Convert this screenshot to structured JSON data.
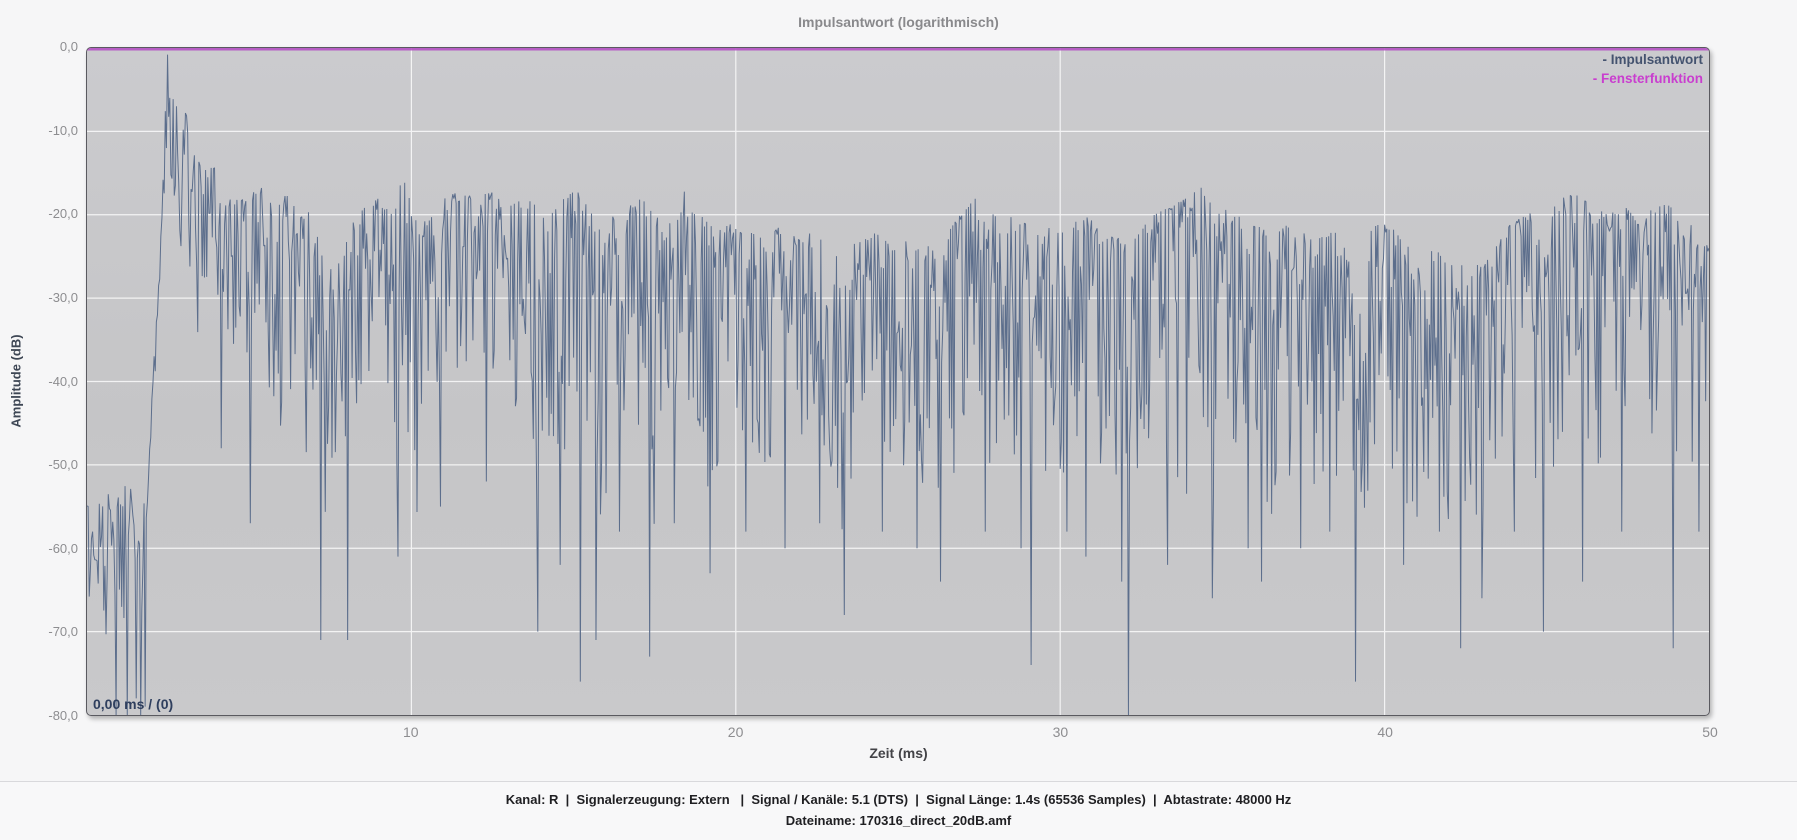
{
  "page": {
    "title": "Impulsantwort (logarithmisch)"
  },
  "footer": {
    "info_line": "Kanal: R  |  Signalerzeugung: Extern   |  Signal / Kanäle: 5.1 (DTS)  |  Signal Länge: 1.4s (65536 Samples)  |  Abtastrate: 48000 Hz",
    "filename_line": "Dateiname: 170316_direct_20dB.amf"
  },
  "colors": {
    "plot_bg_top": "#cbcbce",
    "plot_bg_bottom": "#c9c9cb",
    "grid": "rgba(255,255,255,0.78)",
    "impulse_line": "#5c6e8c",
    "window_line": "#b44ec4",
    "legend_impulse_text": "#44536f",
    "legend_window_text": "#c93ecf",
    "tick_text": "#8d8d90"
  },
  "chart_data": {
    "type": "line",
    "title": "Impulsantwort (logarithmisch)",
    "xlabel": "Zeit (ms)",
    "ylabel": "Amplitude (dB)",
    "xlim": [
      0,
      50
    ],
    "ylim": [
      -80,
      0
    ],
    "grid": true,
    "x_ticks": [
      {
        "value": 10,
        "label": "10"
      },
      {
        "value": 20,
        "label": "20"
      },
      {
        "value": 30,
        "label": "30"
      },
      {
        "value": 40,
        "label": "40"
      },
      {
        "value": 50,
        "label": "50"
      }
    ],
    "y_ticks": [
      {
        "value": 0,
        "label": "0,0"
      },
      {
        "value": -10,
        "label": "-10,0"
      },
      {
        "value": -20,
        "label": "-20,0"
      },
      {
        "value": -30,
        "label": "-30,0"
      },
      {
        "value": -40,
        "label": "-40,0"
      },
      {
        "value": -50,
        "label": "-50,0"
      },
      {
        "value": -60,
        "label": "-60,0"
      },
      {
        "value": -70,
        "label": "-70,0"
      },
      {
        "value": -80,
        "label": "-80,0"
      }
    ],
    "legend": {
      "position": "top-right",
      "entries": [
        {
          "label": "- Impulsantwort",
          "color": "#44536f"
        },
        {
          "label": "- Fensterfunktion",
          "color": "#c93ecf"
        }
      ]
    },
    "cursor_readout": "0,00 ms / (0)",
    "series": [
      {
        "name": "Impulsantwort",
        "color": "#5c6e8c",
        "type": "stochastic_envelope",
        "seed": 1337,
        "points_per_trace": 1450,
        "peak": {
          "x": 2.47,
          "db": -0.8
        },
        "envelope": [
          [
            0,
            -53,
            -69
          ],
          [
            0.4,
            -52,
            -73
          ],
          [
            0.8,
            -53,
            -71
          ],
          [
            1.1,
            -52,
            -74
          ],
          [
            1.4,
            -53,
            -70
          ],
          [
            1.7,
            -54,
            -68
          ],
          [
            1.85,
            -55,
            -62
          ],
          [
            2.0,
            -42,
            -50
          ],
          [
            2.15,
            -31,
            -37
          ],
          [
            2.3,
            -21,
            -27
          ],
          [
            2.47,
            -0.8,
            -10
          ],
          [
            2.6,
            -4,
            -22
          ],
          [
            2.8,
            -7,
            -27
          ],
          [
            3.0,
            -6,
            -24
          ],
          [
            3.2,
            -12,
            -33
          ],
          [
            3.5,
            -14,
            -38
          ],
          [
            3.8,
            -13,
            -35
          ],
          [
            4.1,
            -16,
            -46
          ],
          [
            4.4,
            -18,
            -40
          ],
          [
            4.7,
            -17,
            -36
          ],
          [
            5.0,
            -18,
            -52
          ],
          [
            5.3,
            -16,
            -40
          ],
          [
            5.6,
            -18,
            -46
          ],
          [
            5.9,
            -19,
            -54
          ],
          [
            6.2,
            -17,
            -40
          ],
          [
            6.5,
            -20,
            -47
          ],
          [
            6.8,
            -19,
            -54
          ],
          [
            7.1,
            -22,
            -50
          ],
          [
            7.4,
            -25,
            -58
          ],
          [
            7.7,
            -26,
            -52
          ],
          [
            8.0,
            -23,
            -48
          ],
          [
            8.3,
            -20,
            -43
          ],
          [
            8.6,
            -19,
            -39
          ],
          [
            9.0,
            -18,
            -44
          ],
          [
            9.4,
            -20,
            -48
          ],
          [
            9.75,
            -15,
            -52
          ],
          [
            10.1,
            -20,
            -58
          ],
          [
            10.5,
            -21,
            -45
          ],
          [
            11.0,
            -18,
            -42
          ],
          [
            11.5,
            -17,
            -38
          ],
          [
            12.0,
            -18,
            -42
          ],
          [
            12.5,
            -17,
            -40
          ],
          [
            13.0,
            -19,
            -48
          ],
          [
            13.5,
            -18,
            -44
          ],
          [
            13.9,
            -19,
            -60
          ],
          [
            14.3,
            -20,
            -46
          ],
          [
            14.7,
            -18,
            -52
          ],
          [
            15.1,
            -17,
            -58
          ],
          [
            15.5,
            -19,
            -52
          ],
          [
            15.9,
            -21,
            -60
          ],
          [
            16.3,
            -20,
            -46
          ],
          [
            16.7,
            -19,
            -42
          ],
          [
            17.1,
            -18,
            -50
          ],
          [
            17.5,
            -20,
            -62
          ],
          [
            17.9,
            -21,
            -48
          ],
          [
            18.4,
            -17,
            -42
          ],
          [
            18.9,
            -20,
            -52
          ],
          [
            19.4,
            -22,
            -56
          ],
          [
            19.9,
            -21,
            -47
          ],
          [
            20.4,
            -22,
            -50
          ],
          [
            20.9,
            -23,
            -52
          ],
          [
            21.4,
            -21,
            -48
          ],
          [
            21.9,
            -23,
            -55
          ],
          [
            22.4,
            -22,
            -47
          ],
          [
            22.9,
            -24,
            -56
          ],
          [
            23.4,
            -24,
            -62
          ],
          [
            23.9,
            -23,
            -50
          ],
          [
            24.4,
            -22,
            -46
          ],
          [
            24.9,
            -24,
            -54
          ],
          [
            25.4,
            -22,
            -48
          ],
          [
            25.9,
            -23,
            -54
          ],
          [
            26.4,
            -23,
            -58
          ],
          [
            26.9,
            -20,
            -48
          ],
          [
            27.4,
            -18,
            -46
          ],
          [
            27.9,
            -19,
            -52
          ],
          [
            28.4,
            -20,
            -48
          ],
          [
            28.9,
            -21,
            -58
          ],
          [
            29.4,
            -21,
            -52
          ],
          [
            29.9,
            -22,
            -56
          ],
          [
            30.4,
            -21,
            -48
          ],
          [
            30.9,
            -20,
            -46
          ],
          [
            31.4,
            -22,
            -54
          ],
          [
            31.9,
            -23,
            -60
          ],
          [
            32.4,
            -22,
            -52
          ],
          [
            32.9,
            -20,
            -47
          ],
          [
            33.4,
            -19,
            -50
          ],
          [
            33.9,
            -18,
            -54
          ],
          [
            34.4,
            -16.5,
            -58
          ],
          [
            34.9,
            -19,
            -52
          ],
          [
            35.4,
            -20,
            -48
          ],
          [
            35.9,
            -21,
            -55
          ],
          [
            36.4,
            -22,
            -58
          ],
          [
            36.9,
            -21,
            -50
          ],
          [
            37.4,
            -22,
            -55
          ],
          [
            37.9,
            -23,
            -52
          ],
          [
            38.4,
            -22,
            -56
          ],
          [
            38.9,
            -23,
            -62
          ],
          [
            39.4,
            -22,
            -55
          ],
          [
            39.9,
            -21,
            -50
          ],
          [
            40.4,
            -22,
            -55
          ],
          [
            40.9,
            -23,
            -58
          ],
          [
            41.4,
            -24,
            -52
          ],
          [
            41.9,
            -25,
            -56
          ],
          [
            42.4,
            -26,
            -62
          ],
          [
            42.9,
            -26,
            -58
          ],
          [
            43.4,
            -24,
            -52
          ],
          [
            43.9,
            -21,
            -47
          ],
          [
            44.4,
            -20,
            -52
          ],
          [
            44.9,
            -19,
            -58
          ],
          [
            45.4,
            -18,
            -48
          ],
          [
            45.9,
            -17.5,
            -44
          ],
          [
            46.4,
            -19,
            -52
          ],
          [
            46.9,
            -20,
            -48
          ],
          [
            47.4,
            -19,
            -46
          ],
          [
            47.9,
            -21,
            -53
          ],
          [
            48.4,
            -18.5,
            -48
          ],
          [
            48.9,
            -19,
            -56
          ],
          [
            49.4,
            -21,
            -50
          ],
          [
            50,
            -24,
            -56
          ]
        ],
        "deep_nulls": [
          [
            0.9,
            -80
          ],
          [
            1.25,
            -80
          ],
          [
            1.5,
            -78
          ],
          [
            1.65,
            -80
          ],
          [
            1.8,
            -79
          ],
          [
            4.15,
            -48
          ],
          [
            5.05,
            -57
          ],
          [
            7.2,
            -71
          ],
          [
            8.05,
            -71
          ],
          [
            9.6,
            -61
          ],
          [
            10.9,
            -55
          ],
          [
            12.3,
            -52
          ],
          [
            13.9,
            -70
          ],
          [
            14.6,
            -62
          ],
          [
            15.2,
            -76
          ],
          [
            15.7,
            -71
          ],
          [
            16.4,
            -58
          ],
          [
            17.35,
            -73
          ],
          [
            18.1,
            -57
          ],
          [
            19.2,
            -63
          ],
          [
            20.3,
            -58
          ],
          [
            21.5,
            -60
          ],
          [
            22.6,
            -57
          ],
          [
            23.35,
            -68
          ],
          [
            24.5,
            -58
          ],
          [
            25.6,
            -60
          ],
          [
            26.3,
            -64
          ],
          [
            27.7,
            -58
          ],
          [
            28.8,
            -60
          ],
          [
            29.1,
            -74
          ],
          [
            30.2,
            -58
          ],
          [
            30.8,
            -61
          ],
          [
            31.9,
            -64
          ],
          [
            32.1,
            -80
          ],
          [
            33.3,
            -62
          ],
          [
            34.7,
            -66
          ],
          [
            35.8,
            -60
          ],
          [
            36.2,
            -64
          ],
          [
            37.4,
            -60
          ],
          [
            38.3,
            -58
          ],
          [
            39.1,
            -76
          ],
          [
            40.6,
            -62
          ],
          [
            41.7,
            -58
          ],
          [
            42.35,
            -72
          ],
          [
            43.0,
            -66
          ],
          [
            44.0,
            -58
          ],
          [
            44.9,
            -70
          ],
          [
            46.1,
            -64
          ],
          [
            47.3,
            -58
          ],
          [
            48.9,
            -72
          ],
          [
            49.7,
            -58
          ]
        ]
      },
      {
        "name": "Fensterfunktion",
        "color": "#b44ec4",
        "type": "constant",
        "db": 0
      }
    ]
  }
}
